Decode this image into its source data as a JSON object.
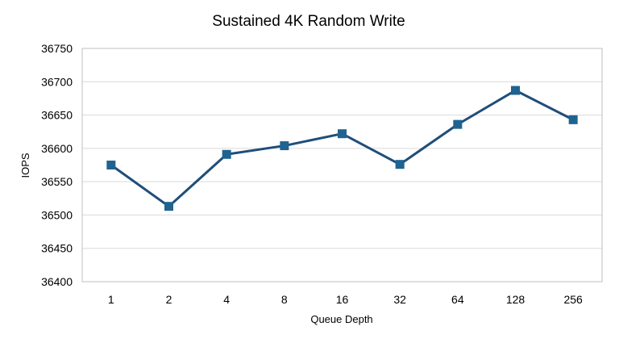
{
  "chart_data": {
    "type": "line",
    "title": "Sustained 4K Random Write",
    "xlabel": "Queue Depth",
    "ylabel": "IOPS",
    "categories": [
      "1",
      "2",
      "4",
      "8",
      "16",
      "32",
      "64",
      "128",
      "256"
    ],
    "series": [
      {
        "values": [
          36575,
          36513,
          36591,
          36604,
          36622,
          36576,
          36636,
          36687,
          36643
        ],
        "color": "#1f4e79",
        "marker_color": "#1f6391",
        "marker": "square"
      }
    ],
    "ylim": [
      36400,
      36750
    ],
    "yticks": [
      36400,
      36450,
      36500,
      36550,
      36600,
      36650,
      36700,
      36750
    ],
    "grid": true,
    "legend": "none"
  }
}
